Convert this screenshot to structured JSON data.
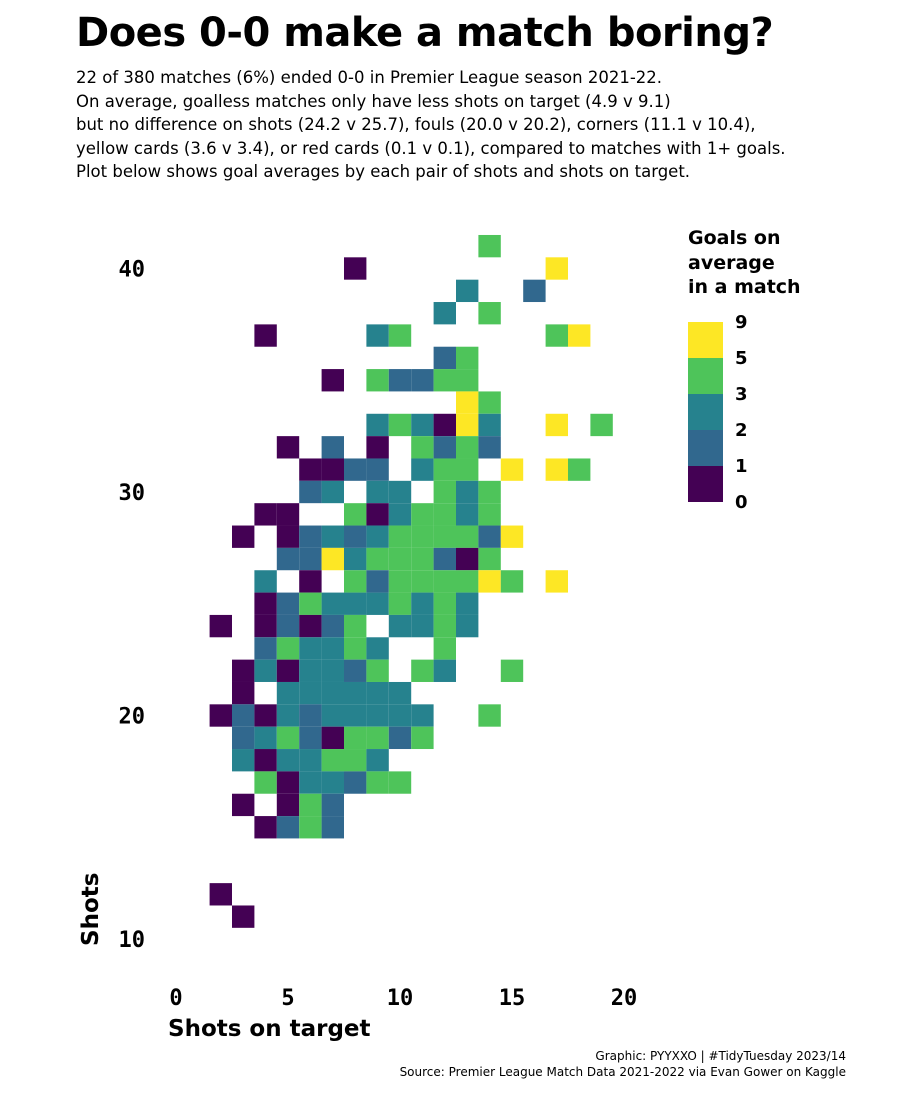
{
  "title": "Does 0-0 make a match boring?",
  "subtitle": [
    "22 of 380 matches (6%) ended 0-0 in Premier League season 2021-22.",
    "On average, goalless matches only have less shots on target (4.9 v 9.1)",
    "but no difference on shots (24.2 v 25.7), fouls (20.0 v 20.2), corners (11.1 v 10.4),",
    "yellow cards (3.6 v 3.4), or red cards (0.1 v 0.1), compared to matches with 1+ goals.",
    "Plot below shows goal averages by each pair of shots and shots on target."
  ],
  "caption": {
    "line1": "Graphic: PYYXXO | #TidyTuesday 2023/14",
    "line2": "Source: Premier League Match Data 2021-2022 via Evan Gower on Kaggle"
  },
  "colors": [
    "#440154",
    "#31688e",
    "#26828e",
    "#4ec45a",
    "#fde725"
  ],
  "chart_data": {
    "type": "heatmap",
    "xlabel": "Shots on target",
    "ylabel": "Shots",
    "xlim": [
      -0.5,
      20.5
    ],
    "ylim": [
      8.5,
      41.5
    ],
    "x_ticks": [
      0,
      5,
      10,
      15,
      20
    ],
    "y_ticks": [
      10,
      20,
      30,
      40
    ],
    "legend": {
      "title": [
        "Goals on",
        "average",
        "in a match"
      ],
      "labels": [
        "9",
        "5",
        "3",
        "2",
        "1",
        "0"
      ],
      "bins": [
        {
          "range": "5-9",
          "color_index": 4
        },
        {
          "range": "3-5",
          "color_index": 3
        },
        {
          "range": "2-3",
          "color_index": 2
        },
        {
          "range": "1-2",
          "color_index": 1
        },
        {
          "range": "0-1",
          "color_index": 0
        }
      ]
    },
    "note": "cells: [shots on target, shots, goals-on-average bin (0 = 0-1, 1 = 1-2, 2 = 2-3, 3 = 3-5, 4 = 5-9)]",
    "cells": [
      [
        14,
        41,
        3
      ],
      [
        8,
        40,
        0
      ],
      [
        17,
        40,
        4
      ],
      [
        13,
        39,
        2
      ],
      [
        16,
        39,
        1
      ],
      [
        12,
        38,
        2
      ],
      [
        14,
        38,
        3
      ],
      [
        4,
        37,
        0
      ],
      [
        9,
        37,
        2
      ],
      [
        10,
        37,
        3
      ],
      [
        17,
        37,
        3
      ],
      [
        18,
        37,
        4
      ],
      [
        12,
        36,
        1
      ],
      [
        13,
        36,
        3
      ],
      [
        7,
        35,
        0
      ],
      [
        9,
        35,
        3
      ],
      [
        10,
        35,
        1
      ],
      [
        11,
        35,
        1
      ],
      [
        12,
        35,
        3
      ],
      [
        13,
        35,
        3
      ],
      [
        13,
        34,
        4
      ],
      [
        14,
        34,
        3
      ],
      [
        9,
        33,
        2
      ],
      [
        10,
        33,
        3
      ],
      [
        11,
        33,
        2
      ],
      [
        12,
        33,
        0
      ],
      [
        13,
        33,
        4
      ],
      [
        14,
        33,
        2
      ],
      [
        17,
        33,
        4
      ],
      [
        19,
        33,
        3
      ],
      [
        5,
        32,
        0
      ],
      [
        7,
        32,
        1
      ],
      [
        9,
        32,
        0
      ],
      [
        11,
        32,
        3
      ],
      [
        12,
        32,
        1
      ],
      [
        13,
        32,
        3
      ],
      [
        14,
        32,
        1
      ],
      [
        6,
        31,
        0
      ],
      [
        7,
        31,
        0
      ],
      [
        8,
        31,
        1
      ],
      [
        9,
        31,
        1
      ],
      [
        11,
        31,
        2
      ],
      [
        12,
        31,
        3
      ],
      [
        13,
        31,
        3
      ],
      [
        15,
        31,
        4
      ],
      [
        17,
        31,
        4
      ],
      [
        18,
        31,
        3
      ],
      [
        6,
        30,
        1
      ],
      [
        7,
        30,
        2
      ],
      [
        9,
        30,
        2
      ],
      [
        10,
        30,
        2
      ],
      [
        12,
        30,
        3
      ],
      [
        13,
        30,
        2
      ],
      [
        14,
        30,
        3
      ],
      [
        4,
        29,
        0
      ],
      [
        5,
        29,
        0
      ],
      [
        8,
        29,
        3
      ],
      [
        9,
        29,
        0
      ],
      [
        10,
        29,
        2
      ],
      [
        11,
        29,
        3
      ],
      [
        12,
        29,
        3
      ],
      [
        13,
        29,
        2
      ],
      [
        14,
        29,
        3
      ],
      [
        3,
        28,
        0
      ],
      [
        5,
        28,
        0
      ],
      [
        6,
        28,
        1
      ],
      [
        7,
        28,
        2
      ],
      [
        8,
        28,
        1
      ],
      [
        9,
        28,
        2
      ],
      [
        10,
        28,
        3
      ],
      [
        11,
        28,
        3
      ],
      [
        12,
        28,
        3
      ],
      [
        13,
        28,
        3
      ],
      [
        14,
        28,
        1
      ],
      [
        15,
        28,
        4
      ],
      [
        5,
        27,
        1
      ],
      [
        6,
        27,
        1
      ],
      [
        7,
        27,
        4
      ],
      [
        8,
        27,
        2
      ],
      [
        9,
        27,
        3
      ],
      [
        10,
        27,
        3
      ],
      [
        11,
        27,
        3
      ],
      [
        12,
        27,
        1
      ],
      [
        13,
        27,
        0
      ],
      [
        14,
        27,
        3
      ],
      [
        4,
        26,
        2
      ],
      [
        6,
        26,
        0
      ],
      [
        8,
        26,
        3
      ],
      [
        9,
        26,
        1
      ],
      [
        10,
        26,
        3
      ],
      [
        11,
        26,
        3
      ],
      [
        12,
        26,
        3
      ],
      [
        13,
        26,
        3
      ],
      [
        14,
        26,
        4
      ],
      [
        15,
        26,
        3
      ],
      [
        17,
        26,
        4
      ],
      [
        4,
        25,
        0
      ],
      [
        5,
        25,
        1
      ],
      [
        6,
        25,
        3
      ],
      [
        7,
        25,
        2
      ],
      [
        8,
        25,
        2
      ],
      [
        9,
        25,
        2
      ],
      [
        10,
        25,
        3
      ],
      [
        11,
        25,
        2
      ],
      [
        12,
        25,
        3
      ],
      [
        13,
        25,
        2
      ],
      [
        2,
        24,
        0
      ],
      [
        4,
        24,
        0
      ],
      [
        5,
        24,
        1
      ],
      [
        6,
        24,
        0
      ],
      [
        7,
        24,
        1
      ],
      [
        8,
        24,
        3
      ],
      [
        10,
        24,
        2
      ],
      [
        11,
        24,
        2
      ],
      [
        12,
        24,
        3
      ],
      [
        13,
        24,
        2
      ],
      [
        4,
        23,
        1
      ],
      [
        5,
        23,
        3
      ],
      [
        6,
        23,
        2
      ],
      [
        7,
        23,
        2
      ],
      [
        8,
        23,
        3
      ],
      [
        9,
        23,
        2
      ],
      [
        12,
        23,
        3
      ],
      [
        3,
        22,
        0
      ],
      [
        4,
        22,
        2
      ],
      [
        5,
        22,
        0
      ],
      [
        6,
        22,
        2
      ],
      [
        7,
        22,
        2
      ],
      [
        8,
        22,
        1
      ],
      [
        9,
        22,
        3
      ],
      [
        11,
        22,
        3
      ],
      [
        12,
        22,
        2
      ],
      [
        15,
        22,
        3
      ],
      [
        3,
        21,
        0
      ],
      [
        5,
        21,
        2
      ],
      [
        6,
        21,
        2
      ],
      [
        7,
        21,
        2
      ],
      [
        8,
        21,
        2
      ],
      [
        9,
        21,
        2
      ],
      [
        10,
        21,
        2
      ],
      [
        2,
        20,
        0
      ],
      [
        3,
        20,
        1
      ],
      [
        4,
        20,
        0
      ],
      [
        5,
        20,
        2
      ],
      [
        6,
        20,
        1
      ],
      [
        7,
        20,
        2
      ],
      [
        8,
        20,
        2
      ],
      [
        9,
        20,
        2
      ],
      [
        10,
        20,
        2
      ],
      [
        11,
        20,
        2
      ],
      [
        14,
        20,
        3
      ],
      [
        3,
        19,
        1
      ],
      [
        4,
        19,
        2
      ],
      [
        5,
        19,
        3
      ],
      [
        6,
        19,
        1
      ],
      [
        7,
        19,
        0
      ],
      [
        8,
        19,
        3
      ],
      [
        9,
        19,
        3
      ],
      [
        10,
        19,
        1
      ],
      [
        11,
        19,
        3
      ],
      [
        3,
        18,
        2
      ],
      [
        4,
        18,
        0
      ],
      [
        5,
        18,
        2
      ],
      [
        6,
        18,
        2
      ],
      [
        7,
        18,
        3
      ],
      [
        8,
        18,
        3
      ],
      [
        9,
        18,
        2
      ],
      [
        4,
        17,
        3
      ],
      [
        5,
        17,
        0
      ],
      [
        6,
        17,
        2
      ],
      [
        7,
        17,
        2
      ],
      [
        8,
        17,
        1
      ],
      [
        9,
        17,
        3
      ],
      [
        10,
        17,
        3
      ],
      [
        3,
        16,
        0
      ],
      [
        5,
        16,
        0
      ],
      [
        6,
        16,
        3
      ],
      [
        7,
        16,
        1
      ],
      [
        4,
        15,
        0
      ],
      [
        5,
        15,
        1
      ],
      [
        6,
        15,
        3
      ],
      [
        7,
        15,
        1
      ],
      [
        2,
        12,
        0
      ],
      [
        3,
        11,
        0
      ]
    ]
  }
}
